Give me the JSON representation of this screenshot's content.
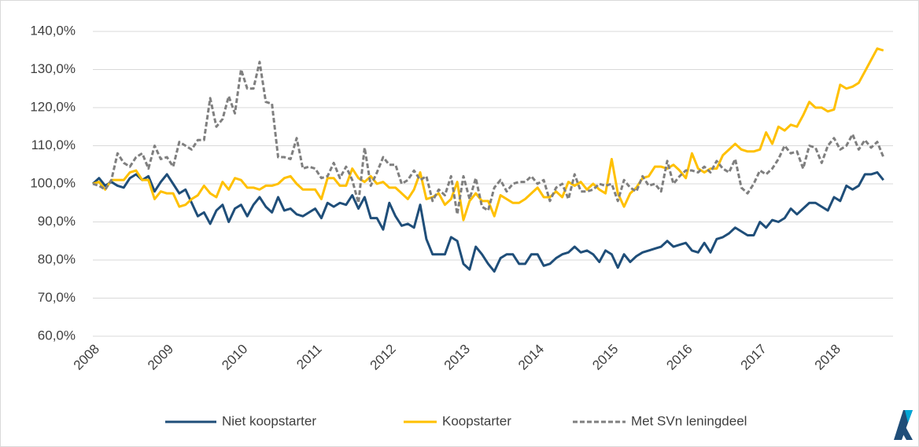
{
  "chart_data": {
    "type": "line",
    "categories": [
      "2008",
      null,
      null,
      null,
      null,
      null,
      null,
      null,
      null,
      null,
      null,
      null,
      "2009",
      null,
      null,
      null,
      null,
      null,
      null,
      null,
      null,
      null,
      null,
      null,
      "2010",
      null,
      null,
      null,
      null,
      null,
      null,
      null,
      null,
      null,
      null,
      null,
      "2011",
      null,
      null,
      null,
      null,
      null,
      null,
      null,
      null,
      null,
      null,
      null,
      "2012",
      null,
      null,
      null,
      null,
      null,
      null,
      null,
      null,
      null,
      null,
      null,
      "2013",
      null,
      null,
      null,
      null,
      null,
      null,
      null,
      null,
      null,
      null,
      null,
      "2014",
      null,
      null,
      null,
      null,
      null,
      null,
      null,
      null,
      null,
      null,
      null,
      "2015",
      null,
      null,
      null,
      null,
      null,
      null,
      null,
      null,
      null,
      null,
      null,
      "2016",
      null,
      null,
      null,
      null,
      null,
      null,
      null,
      null,
      null,
      null,
      null,
      "2017",
      null,
      null,
      null,
      null,
      null,
      null,
      null,
      null,
      null,
      null,
      null,
      "2018",
      null,
      null,
      null,
      null,
      null,
      null,
      null,
      null
    ],
    "series": [
      {
        "name": "Niet koopstarter",
        "color": "#1f4e79",
        "dashed": false,
        "values": [
          100,
          101.5,
          99.5,
          100.5,
          99.5,
          99,
          101.5,
          102.5,
          101,
          102,
          98,
          100.5,
          102.5,
          100,
          97.5,
          98.5,
          95,
          91.5,
          92.5,
          89.5,
          93,
          94.5,
          90,
          93.5,
          94.5,
          91.5,
          94.5,
          96.5,
          94,
          92.5,
          96.5,
          93,
          93.5,
          92,
          91.5,
          92.5,
          93.5,
          91,
          95,
          94,
          95,
          94.5,
          97,
          93.5,
          96.5,
          91,
          91,
          88,
          95,
          91.5,
          89,
          89.5,
          88.5,
          94.5,
          85.5,
          81.5,
          81.5,
          81.5,
          86,
          85,
          79,
          77.5,
          83.5,
          81.5,
          79,
          77,
          80.5,
          81.5,
          81.5,
          79,
          79,
          81.5,
          81.5,
          78.5,
          79,
          80.5,
          81.5,
          82,
          83.5,
          82,
          82.5,
          81.5,
          79.5,
          82.5,
          81.5,
          78,
          81.5,
          79.5,
          81,
          82,
          82.5,
          83,
          83.5,
          85,
          83.5,
          84,
          84.5,
          82.5,
          82,
          84.5,
          82,
          85.5,
          86,
          87,
          88.5,
          87.5,
          86.5,
          86.5,
          90,
          88.5,
          90.5,
          90,
          91,
          93.5,
          92,
          93.5,
          95,
          95,
          94,
          93,
          96.5,
          95.5,
          99.5,
          98.5,
          99.5,
          102.5,
          102.5,
          103,
          101
        ]
      },
      {
        "name": "Koopstarter",
        "color": "#ffc000",
        "dashed": false,
        "values": [
          100,
          100.5,
          98.5,
          101,
          101,
          101,
          103,
          103.5,
          101,
          101,
          96,
          98,
          97.5,
          97.5,
          94,
          94.5,
          96,
          97,
          99.5,
          97.5,
          96.5,
          100.5,
          98.5,
          101.5,
          101,
          99,
          99,
          98.5,
          99.5,
          99.5,
          100,
          101.5,
          102,
          100,
          98.5,
          98.5,
          98.5,
          96,
          101.5,
          101.5,
          99.5,
          99.5,
          104,
          101.5,
          100.5,
          102,
          100,
          100.5,
          99,
          99,
          97.5,
          96,
          98.5,
          103,
          96,
          96.5,
          97.5,
          94.5,
          96,
          100.5,
          90.5,
          95.5,
          97.5,
          95.5,
          95.5,
          91.5,
          97,
          96,
          95,
          95,
          96,
          97.5,
          99,
          96.5,
          96.5,
          98,
          96.5,
          100.5,
          99.5,
          100.5,
          98.5,
          100,
          98.5,
          97.5,
          106.5,
          97.5,
          94,
          97.5,
          99,
          101.5,
          102,
          104.5,
          104.5,
          104,
          105,
          103.5,
          101.5,
          108,
          104,
          103,
          104,
          104,
          107.5,
          109,
          110.5,
          109,
          108.5,
          108.5,
          109,
          113.5,
          110.5,
          115,
          114,
          115.5,
          115,
          118,
          121.5,
          120,
          120,
          119,
          119.5,
          126,
          125,
          125.5,
          126.5,
          129.5,
          132.5,
          135.5,
          135
        ]
      },
      {
        "name": "Met SVn leningdeel",
        "color": "#7f7f7f",
        "dashed": true,
        "values": [
          100,
          99.5,
          98.5,
          101,
          108,
          105.5,
          104.5,
          107,
          108,
          104,
          110,
          106.5,
          107,
          104.5,
          111,
          110,
          109,
          111.5,
          111.5,
          122.5,
          115,
          117,
          123,
          118.5,
          130,
          125,
          125,
          132,
          121.5,
          121,
          107,
          107,
          106.5,
          112,
          104,
          104.5,
          104,
          101.5,
          102,
          105.5,
          101.5,
          104.5,
          101,
          95,
          109.5,
          99.5,
          103,
          107,
          105,
          105,
          100,
          101,
          103.5,
          101,
          102,
          95.5,
          98.5,
          97,
          102,
          92,
          102,
          96,
          101.5,
          94,
          93,
          99,
          101,
          98,
          100,
          100.5,
          100.5,
          102,
          100,
          101,
          95.5,
          99,
          100,
          96,
          102.5,
          98,
          98,
          98.5,
          100,
          99.5,
          100,
          95.5,
          101,
          99,
          98,
          102,
          99.5,
          100,
          98,
          106,
          100,
          102,
          103.5,
          103.5,
          103,
          104.5,
          103,
          106,
          104,
          103,
          106.5,
          99,
          97.5,
          100,
          103.5,
          102.5,
          104,
          106.5,
          110,
          108,
          108.5,
          104,
          110,
          109.5,
          105.5,
          110,
          112,
          109,
          110,
          113,
          109,
          111.5,
          109.5,
          111,
          107
        ]
      }
    ],
    "ylim": [
      60,
      140
    ],
    "yticks": [
      {
        "value": 60,
        "label": "60,0%"
      },
      {
        "value": 70,
        "label": "70,0%"
      },
      {
        "value": 80,
        "label": "80,0%"
      },
      {
        "value": 90,
        "label": "90,0%"
      },
      {
        "value": 100,
        "label": "100,0%"
      },
      {
        "value": 110,
        "label": "110,0%"
      },
      {
        "value": 120,
        "label": "120,0%"
      },
      {
        "value": 130,
        "label": "130,0%"
      },
      {
        "value": 140,
        "label": "140,0%"
      }
    ],
    "grid": true,
    "legend": "bottom"
  }
}
